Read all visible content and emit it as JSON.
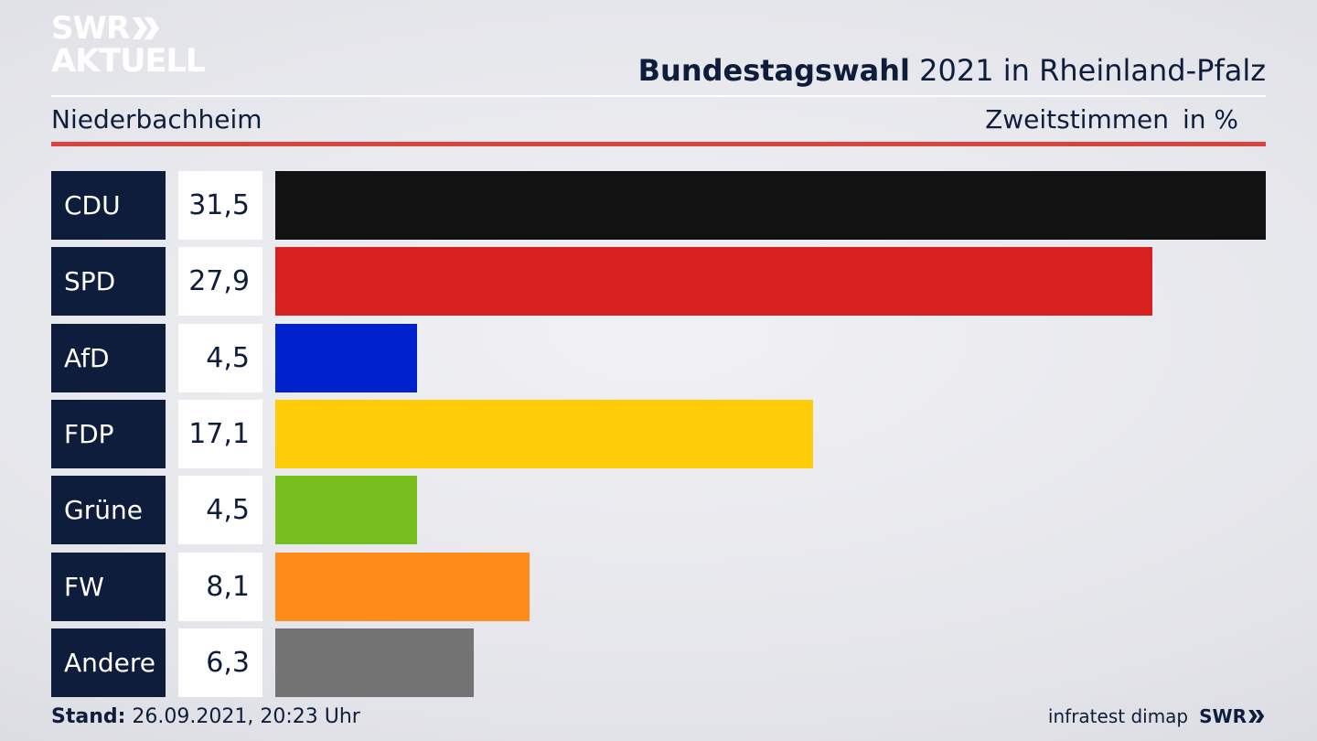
{
  "brand": {
    "logo_line1": "SWR",
    "logo_line2": "AKTUELL",
    "footer_logo": "SWR"
  },
  "header": {
    "title_bold": "Bundestagswahl",
    "title_rest": " 2021 in Rheinland-Pfalz",
    "region": "Niederbachheim",
    "vote_type": "Zweitstimmen",
    "unit": "in %"
  },
  "footer": {
    "stand_label": "Stand:",
    "stand_value": " 26.09.2021, 20:23 Uhr",
    "source": "infratest dimap"
  },
  "colors": {
    "navy": "#0f1d3c",
    "accent_red": "#d9453e"
  },
  "chart_data": {
    "type": "bar",
    "orientation": "horizontal",
    "title": "Bundestagswahl 2021 in Rheinland-Pfalz",
    "subtitle": "Niederbachheim",
    "ylabel": "Zweitstimmen in %",
    "categories": [
      "CDU",
      "SPD",
      "AfD",
      "FDP",
      "Grüne",
      "FW",
      "Andere"
    ],
    "values": [
      31.5,
      27.9,
      4.5,
      17.1,
      4.5,
      8.1,
      6.3
    ],
    "labels": [
      "31,5",
      "27,9",
      "4,5",
      "17,1",
      "4,5",
      "8,1",
      "6,3"
    ],
    "colors": [
      "#121212",
      "#d92020",
      "#0022cc",
      "#ffcc0a",
      "#78be1e",
      "#ff8c1a",
      "#737373"
    ],
    "grid": false,
    "legend": "none"
  }
}
